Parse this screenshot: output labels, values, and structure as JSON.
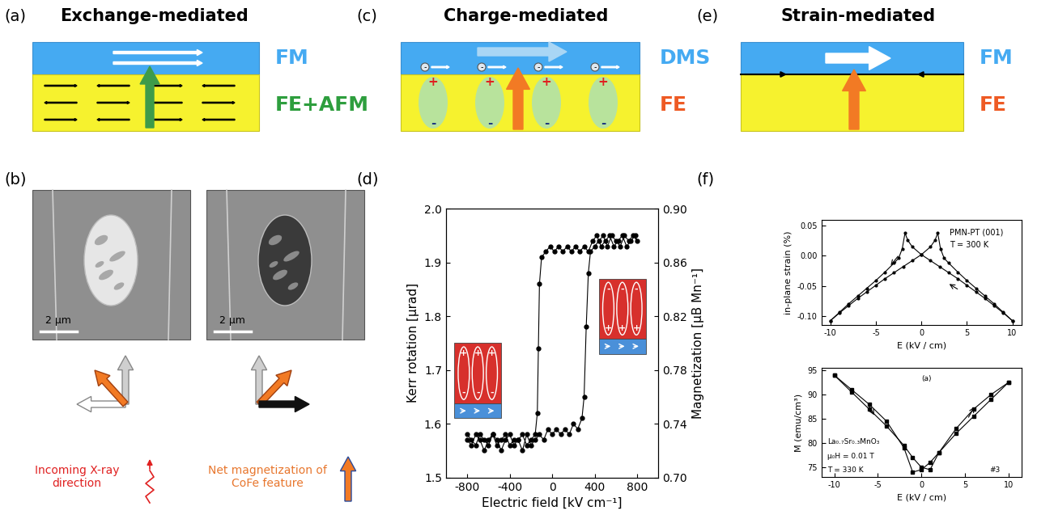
{
  "schematics": [
    {
      "panel_label": "(a)",
      "title": "Exchange-mediated",
      "top_layer": "FM",
      "bottom_layer": "FE+AFM"
    },
    {
      "panel_label": "(c)",
      "title": "Charge-mediated",
      "top_layer": "DMS",
      "bottom_layer": "FE",
      "charges": [
        "+",
        "-"
      ]
    },
    {
      "panel_label": "(e)",
      "title": "Strain-mediated",
      "top_layer": "FM",
      "bottom_layer": "FE"
    }
  ],
  "images": {
    "panel_label": "(b)",
    "scale_bars": [
      "2 μm",
      "2 μm"
    ],
    "legend_texts": [
      "Incoming X-ray\ndirection",
      "Net magnetization of\nCoFe feature"
    ]
  },
  "chart_data": [
    {
      "panel_label": "(d)",
      "type": "line",
      "xlabel": "Electric field [kV cm⁻¹]",
      "ylabel": "Kerr rotation [μrad]",
      "y2label": "Magnetization [μB Mn⁻¹]",
      "xlim": [
        -1000,
        1000
      ],
      "xticks": [
        -800,
        -400,
        0,
        400,
        800
      ],
      "ylim": [
        1.5,
        2.0
      ],
      "yticks": [
        1.5,
        1.6,
        1.7,
        1.8,
        1.9,
        2.0
      ],
      "y2lim": [
        0.7,
        0.9
      ],
      "y2ticks": [
        {
          "value": 0.7,
          "label": "0.70"
        },
        0.74,
        0.78,
        0.82,
        0.86,
        {
          "value": 0.9,
          "label": "0.90"
        }
      ],
      "annotations": [
        "+",
        "-"
      ],
      "series": [
        {
          "color": "#000000",
          "marker": "circle",
          "line_style": "solid",
          "x": [
            -800,
            -760,
            -720,
            -680,
            -640,
            -600,
            -560,
            -520,
            -480,
            -440,
            -400,
            -360,
            -320,
            -280,
            -240,
            -200,
            -160,
            -120,
            -80,
            -40,
            0,
            40,
            80,
            120,
            160,
            200,
            240,
            280,
            300,
            320,
            340,
            360,
            400,
            440,
            480,
            520,
            560,
            600,
            640,
            680,
            720,
            760,
            800,
            780,
            740,
            700,
            660,
            620,
            580,
            540,
            500,
            460,
            420,
            380,
            340,
            300,
            260,
            220,
            180,
            140,
            100,
            60,
            20,
            -20,
            -60,
            -100,
            -120,
            -130,
            -140,
            -160,
            -200,
            -240,
            -280,
            -320,
            -360,
            -400,
            -440,
            -480,
            -520,
            -560,
            -600,
            -640,
            -680,
            -720,
            -760,
            -800
          ],
          "values": [
            1.57,
            1.56,
            1.58,
            1.57,
            1.55,
            1.57,
            1.58,
            1.56,
            1.57,
            1.58,
            1.56,
            1.57,
            1.57,
            1.55,
            1.58,
            1.56,
            1.57,
            1.58,
            1.57,
            1.59,
            1.58,
            1.59,
            1.58,
            1.59,
            1.58,
            1.6,
            1.59,
            1.61,
            1.65,
            1.78,
            1.88,
            1.92,
            1.93,
            1.94,
            1.95,
            1.93,
            1.95,
            1.94,
            1.93,
            1.95,
            1.94,
            1.95,
            1.94,
            1.95,
            1.94,
            1.93,
            1.95,
            1.94,
            1.93,
            1.95,
            1.94,
            1.93,
            1.95,
            1.94,
            1.92,
            1.93,
            1.92,
            1.93,
            1.92,
            1.93,
            1.92,
            1.93,
            1.92,
            1.93,
            1.92,
            1.91,
            1.86,
            1.74,
            1.62,
            1.58,
            1.57,
            1.56,
            1.58,
            1.57,
            1.56,
            1.58,
            1.57,
            1.55,
            1.57,
            1.58,
            1.56,
            1.57,
            1.58,
            1.56,
            1.57,
            1.58
          ]
        }
      ]
    },
    {
      "panel_label": "(f)",
      "type": "line",
      "xlabel": "E (kV / cm)",
      "ylabel": "in-plane strain (%)",
      "annotations": [
        "PMN-PT (001)",
        "T = 300 K"
      ],
      "xlim": [
        -11,
        11
      ],
      "xticks": [
        -10,
        -5,
        0,
        5,
        10
      ],
      "ylim": [
        -0.115,
        0.06
      ],
      "yticks": [
        0.05,
        {
          "value": 0.0,
          "label": "0.00"
        },
        -0.05,
        {
          "value": -0.1,
          "label": "-0.10"
        }
      ],
      "series": [
        {
          "color": "#000000",
          "marker": "circle",
          "line_style": "solid",
          "x": [
            10,
            9,
            8,
            7,
            6,
            5,
            4,
            3,
            2,
            1,
            0,
            -1,
            -1.5,
            -1.8,
            -2.1,
            -2.5,
            -3,
            -4,
            -5,
            -6,
            -7,
            -8,
            -9,
            -10
          ],
          "values": [
            -0.108,
            -0.095,
            -0.083,
            -0.071,
            -0.06,
            -0.049,
            -0.038,
            -0.028,
            -0.018,
            -0.008,
            0.002,
            0.015,
            0.026,
            0.038,
            0.012,
            -0.004,
            -0.012,
            -0.027,
            -0.041,
            -0.054,
            -0.067,
            -0.08,
            -0.094,
            -0.108
          ]
        },
        {
          "color": "#000000",
          "marker": "circle",
          "line_style": "solid",
          "x": [
            -10,
            -9,
            -8,
            -7,
            -6,
            -5,
            -4,
            -3,
            -2,
            -1,
            0,
            1,
            1.5,
            1.8,
            2.1,
            2.5,
            3,
            4,
            5,
            6,
            7,
            8,
            9,
            10
          ],
          "values": [
            -0.108,
            -0.095,
            -0.083,
            -0.071,
            -0.06,
            -0.049,
            -0.038,
            -0.028,
            -0.018,
            -0.008,
            0.002,
            0.015,
            0.026,
            0.038,
            0.012,
            -0.004,
            -0.012,
            -0.027,
            -0.041,
            -0.054,
            -0.067,
            -0.08,
            -0.094,
            -0.108
          ]
        }
      ]
    },
    {
      "type": "line",
      "xlabel": "E (kV / cm)",
      "ylabel": "M (emu/cm³)",
      "annotations": [
        "La₀.₇Sr₀.₃MnO₃",
        "μ₀H = 0.01 T",
        "T = 330 K",
        "(a)",
        "#3"
      ],
      "xlim": [
        -11.5,
        11.5
      ],
      "xticks": [
        -10,
        -5,
        0,
        5,
        10
      ],
      "ylim": [
        73,
        95.5
      ],
      "yticks": [
        75,
        80,
        85,
        90,
        95
      ],
      "series": [
        {
          "color": "#000000",
          "marker": "square",
          "line_style": "solid",
          "x": [
            -10,
            -8,
            -6,
            -4,
            -2,
            -1,
            0,
            1,
            2,
            4,
            6,
            8,
            10
          ],
          "values": [
            94,
            90.5,
            87,
            83.5,
            79.5,
            77,
            75,
            74.5,
            78,
            83,
            87,
            90,
            92.5
          ]
        },
        {
          "color": "#000000",
          "marker": "square",
          "line_style": "solid",
          "x": [
            10,
            8,
            6,
            4,
            2,
            1,
            0,
            -1,
            -2,
            -4,
            -6,
            -8,
            -10
          ],
          "values": [
            92.5,
            89,
            85.5,
            82,
            78,
            76,
            74.5,
            74,
            79,
            84.5,
            88,
            91,
            94
          ]
        }
      ]
    }
  ]
}
